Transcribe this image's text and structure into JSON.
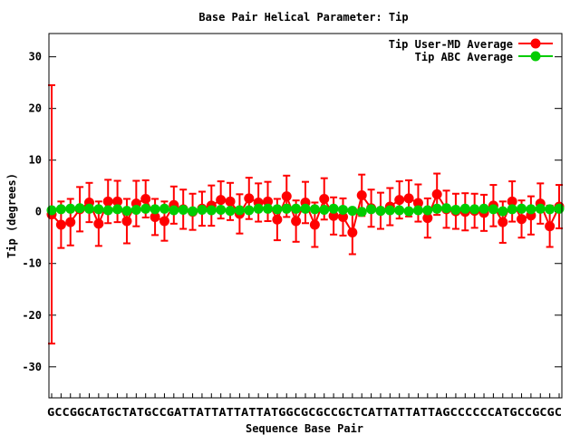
{
  "chart_data": {
    "type": "line",
    "title": "Base Pair Helical Parameter: Tip",
    "xlabel": "Sequence Base Pair",
    "ylabel": "Tip (degrees)",
    "ylim": [
      -36,
      34.5
    ],
    "yticks": [
      30,
      20,
      10,
      0,
      -10,
      -20,
      -30
    ],
    "grid": false,
    "legend_position": "top-right",
    "categories_text": "GCCGGCATGCTATGCCGATTATTATTATTATGGCGCGCCGCTCATTATTATTAGCCCCCCATGCCGCGC",
    "series": [
      {
        "name": "Tip User-MD Average",
        "color": "#ff0000",
        "values": [
          -0.5,
          -2.5,
          -2.0,
          0.5,
          1.8,
          -2.3,
          2.0,
          2.0,
          -1.8,
          1.6,
          2.5,
          -1.0,
          -1.8,
          1.3,
          0.5,
          0.0,
          0.6,
          1.2,
          2.3,
          2.0,
          -0.4,
          2.6,
          1.8,
          2.0,
          -1.5,
          3.0,
          -1.8,
          1.8,
          -2.5,
          2.5,
          -0.8,
          -1.0,
          -4.0,
          3.2,
          0.7,
          0.2,
          1.0,
          2.3,
          2.6,
          1.7,
          -1.2,
          3.4,
          0.5,
          0.1,
          0.0,
          0.2,
          -0.2,
          1.2,
          -2.0,
          2.0,
          -1.4,
          -0.7,
          1.6,
          -2.8,
          1.0
        ],
        "errors": [
          25.0,
          4.5,
          4.5,
          4.3,
          3.8,
          4.3,
          4.2,
          4.0,
          4.3,
          4.4,
          3.6,
          3.5,
          3.8,
          3.6,
          3.8,
          3.5,
          3.3,
          3.9,
          3.6,
          3.6,
          3.8,
          4.0,
          3.7,
          3.8,
          4.0,
          4.0,
          4.0,
          4.0,
          4.3,
          4.0,
          3.6,
          3.6,
          4.2,
          4.0,
          3.6,
          3.5,
          3.6,
          3.6,
          3.5,
          3.6,
          3.8,
          4.0,
          3.6,
          3.4,
          3.6,
          3.3,
          3.5,
          4.0,
          4.0,
          3.9,
          3.6,
          3.7,
          3.9,
          4.0,
          4.2
        ]
      },
      {
        "name": "Tip ABC Average",
        "color": "#00cc00",
        "values": [
          0.3,
          0.5,
          0.6,
          0.7,
          0.6,
          0.5,
          0.3,
          0.5,
          0.2,
          0.4,
          0.6,
          0.5,
          0.6,
          0.3,
          0.4,
          0.1,
          0.4,
          0.3,
          0.4,
          0.2,
          0.3,
          0.3,
          0.6,
          0.6,
          0.5,
          0.6,
          0.6,
          0.6,
          0.5,
          0.4,
          0.6,
          0.4,
          0.2,
          0.0,
          0.5,
          0.2,
          0.3,
          0.3,
          0.1,
          0.3,
          0.3,
          0.6,
          0.7,
          0.4,
          0.6,
          0.5,
          0.6,
          0.5,
          0.1,
          0.5,
          0.6,
          0.5,
          0.6,
          0.5,
          0.6
        ]
      }
    ]
  }
}
